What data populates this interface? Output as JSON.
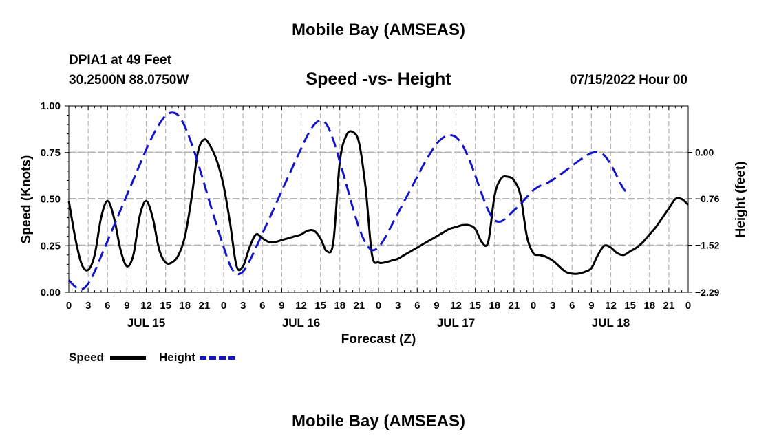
{
  "header": {
    "title": "Mobile Bay (AMSEAS)",
    "station": "DPIA1 at 49 Feet",
    "coords": "30.2500N  88.0750W",
    "chart_title": "Speed -vs- Height",
    "run": "07/15/2022 Hour 00"
  },
  "footer": {
    "title": "Mobile Bay (AMSEAS)"
  },
  "legend": {
    "speed": "Speed",
    "height": "Height"
  },
  "colors": {
    "speed": "#000000",
    "height": "#1414c8",
    "grid": "#b4b4b4"
  },
  "chart_data": {
    "type": "line",
    "title": "Speed -vs- Height",
    "xlabel": "Forecast (Z)",
    "ylabel": "Speed (Knots)",
    "y2label": "Height (feet)",
    "xlim": [
      0,
      96
    ],
    "ylim": [
      0,
      1.0
    ],
    "y2lim": [
      -2.29,
      0.76
    ],
    "yticks": [
      "0.00",
      "0.25",
      "0.50",
      "0.75",
      "1.00"
    ],
    "y2ticks": [
      {
        "value": -2.29,
        "label": "-2.29"
      },
      {
        "value": -1.52,
        "label": "-1.52"
      },
      {
        "value": -0.76,
        "label": "-0.76"
      },
      {
        "value": 0.0,
        "label": "0.00"
      }
    ],
    "xtick_labels": [
      "0",
      "3",
      "6",
      "9",
      "12",
      "15",
      "18",
      "21",
      "0",
      "3",
      "6",
      "9",
      "12",
      "15",
      "18",
      "21",
      "0",
      "3",
      "6",
      "9",
      "12",
      "15",
      "18",
      "21",
      "0",
      "3",
      "6",
      "9",
      "12",
      "15",
      "18",
      "21",
      "0"
    ],
    "day_labels": [
      {
        "hour": 12,
        "label": "JUL 15"
      },
      {
        "hour": 36,
        "label": "JUL 16"
      },
      {
        "hour": 60,
        "label": "JUL 17"
      },
      {
        "hour": 84,
        "label": "JUL 18"
      }
    ],
    "series": [
      {
        "name": "Speed",
        "axis": "left",
        "style": "solid",
        "points": [
          [
            0,
            0.49
          ],
          [
            1,
            0.29
          ],
          [
            2,
            0.15
          ],
          [
            3,
            0.12
          ],
          [
            4,
            0.2
          ],
          [
            5,
            0.4
          ],
          [
            6,
            0.49
          ],
          [
            7,
            0.4
          ],
          [
            8,
            0.23
          ],
          [
            9,
            0.14
          ],
          [
            10,
            0.2
          ],
          [
            11,
            0.41
          ],
          [
            12,
            0.49
          ],
          [
            13,
            0.4
          ],
          [
            14,
            0.23
          ],
          [
            15,
            0.16
          ],
          [
            16,
            0.16
          ],
          [
            17,
            0.2
          ],
          [
            18,
            0.3
          ],
          [
            19,
            0.5
          ],
          [
            20,
            0.75
          ],
          [
            21,
            0.82
          ],
          [
            22,
            0.78
          ],
          [
            23,
            0.7
          ],
          [
            24,
            0.57
          ],
          [
            25,
            0.37
          ],
          [
            26,
            0.14
          ],
          [
            27,
            0.14
          ],
          [
            28,
            0.24
          ],
          [
            29,
            0.31
          ],
          [
            30,
            0.29
          ],
          [
            31,
            0.27
          ],
          [
            32,
            0.27
          ],
          [
            33,
            0.28
          ],
          [
            34,
            0.29
          ],
          [
            35,
            0.3
          ],
          [
            36,
            0.31
          ],
          [
            37,
            0.33
          ],
          [
            38,
            0.33
          ],
          [
            39,
            0.29
          ],
          [
            40,
            0.22
          ],
          [
            41,
            0.27
          ],
          [
            42,
            0.7
          ],
          [
            43,
            0.84
          ],
          [
            44,
            0.86
          ],
          [
            45,
            0.8
          ],
          [
            46,
            0.56
          ],
          [
            47,
            0.2
          ],
          [
            48,
            0.16
          ],
          [
            49,
            0.16
          ],
          [
            50,
            0.17
          ],
          [
            51,
            0.18
          ],
          [
            52,
            0.2
          ],
          [
            53,
            0.22
          ],
          [
            54,
            0.24
          ],
          [
            55,
            0.26
          ],
          [
            56,
            0.28
          ],
          [
            57,
            0.3
          ],
          [
            58,
            0.32
          ],
          [
            59,
            0.34
          ],
          [
            60,
            0.35
          ],
          [
            61,
            0.36
          ],
          [
            62,
            0.36
          ],
          [
            63,
            0.34
          ],
          [
            64,
            0.27
          ],
          [
            65,
            0.27
          ],
          [
            66,
            0.52
          ],
          [
            67,
            0.61
          ],
          [
            68,
            0.62
          ],
          [
            69,
            0.6
          ],
          [
            70,
            0.52
          ],
          [
            71,
            0.3
          ],
          [
            72,
            0.21
          ],
          [
            73,
            0.2
          ],
          [
            74,
            0.19
          ],
          [
            75,
            0.17
          ],
          [
            76,
            0.14
          ],
          [
            77,
            0.11
          ],
          [
            78,
            0.1
          ],
          [
            79,
            0.1
          ],
          [
            80,
            0.11
          ],
          [
            81,
            0.13
          ],
          [
            82,
            0.2
          ],
          [
            83,
            0.25
          ],
          [
            84,
            0.24
          ],
          [
            85,
            0.21
          ],
          [
            86,
            0.2
          ],
          [
            87,
            0.22
          ],
          [
            88,
            0.24
          ],
          [
            89,
            0.27
          ],
          [
            90,
            0.31
          ],
          [
            91,
            0.35
          ],
          [
            92,
            0.4
          ],
          [
            93,
            0.45
          ],
          [
            94,
            0.5
          ],
          [
            95,
            0.5
          ],
          [
            96,
            0.47
          ]
        ]
      },
      {
        "name": "Height",
        "axis": "right",
        "style": "dashed",
        "points": [
          [
            0,
            -2.09
          ],
          [
            1,
            -2.2
          ],
          [
            2,
            -2.24
          ],
          [
            3,
            -2.15
          ],
          [
            4,
            -1.95
          ],
          [
            5,
            -1.7
          ],
          [
            6,
            -1.45
          ],
          [
            7,
            -1.2
          ],
          [
            8,
            -0.95
          ],
          [
            9,
            -0.7
          ],
          [
            10,
            -0.45
          ],
          [
            11,
            -0.2
          ],
          [
            12,
            0.05
          ],
          [
            13,
            0.27
          ],
          [
            14,
            0.46
          ],
          [
            15,
            0.6
          ],
          [
            16,
            0.65
          ],
          [
            17,
            0.6
          ],
          [
            18,
            0.42
          ],
          [
            19,
            0.15
          ],
          [
            20,
            -0.17
          ],
          [
            21,
            -0.52
          ],
          [
            22,
            -0.88
          ],
          [
            23,
            -1.22
          ],
          [
            24,
            -1.55
          ],
          [
            25,
            -1.85
          ],
          [
            26,
            -1.99
          ],
          [
            27,
            -1.95
          ],
          [
            28,
            -1.78
          ],
          [
            29,
            -1.56
          ],
          [
            30,
            -1.33
          ],
          [
            31,
            -1.1
          ],
          [
            32,
            -0.87
          ],
          [
            33,
            -0.63
          ],
          [
            34,
            -0.4
          ],
          [
            35,
            -0.17
          ],
          [
            36,
            0.06
          ],
          [
            37,
            0.28
          ],
          [
            38,
            0.45
          ],
          [
            39,
            0.52
          ],
          [
            40,
            0.45
          ],
          [
            41,
            0.2
          ],
          [
            42,
            -0.15
          ],
          [
            43,
            -0.52
          ],
          [
            44,
            -0.9
          ],
          [
            45,
            -1.24
          ],
          [
            46,
            -1.48
          ],
          [
            47,
            -1.6
          ],
          [
            48,
            -1.55
          ],
          [
            49,
            -1.4
          ],
          [
            50,
            -1.2
          ],
          [
            51,
            -1.0
          ],
          [
            52,
            -0.8
          ],
          [
            53,
            -0.6
          ],
          [
            54,
            -0.4
          ],
          [
            55,
            -0.2
          ],
          [
            56,
            -0.02
          ],
          [
            57,
            0.14
          ],
          [
            58,
            0.24
          ],
          [
            59,
            0.28
          ],
          [
            60,
            0.25
          ],
          [
            61,
            0.12
          ],
          [
            62,
            -0.1
          ],
          [
            63,
            -0.38
          ],
          [
            64,
            -0.68
          ],
          [
            65,
            -0.95
          ],
          [
            66,
            -1.11
          ],
          [
            67,
            -1.13
          ],
          [
            68,
            -1.05
          ],
          [
            69,
            -0.95
          ],
          [
            70,
            -0.85
          ],
          [
            71,
            -0.73
          ],
          [
            72,
            -0.62
          ],
          [
            73,
            -0.55
          ],
          [
            74,
            -0.51
          ],
          [
            75,
            -0.45
          ],
          [
            76,
            -0.38
          ],
          [
            77,
            -0.3
          ],
          [
            78,
            -0.22
          ],
          [
            79,
            -0.14
          ],
          [
            80,
            -0.07
          ],
          [
            81,
            -0.01
          ],
          [
            82,
            0.0
          ],
          [
            83,
            -0.05
          ],
          [
            84,
            -0.2
          ],
          [
            85,
            -0.4
          ],
          [
            86,
            -0.6
          ],
          [
            87,
            -0.7
          ]
        ]
      }
    ]
  }
}
